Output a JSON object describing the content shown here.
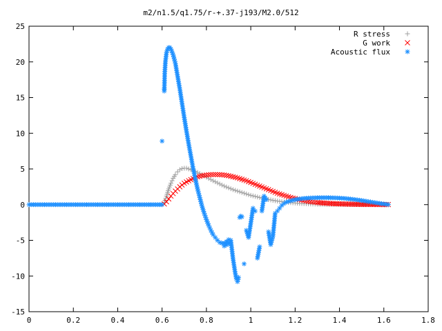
{
  "chart_data": {
    "type": "scatter",
    "title": "m2/n1.5/q1.75/r-+.37-j193/M2.0/512",
    "xlabel": "",
    "ylabel": "",
    "xlim": [
      0,
      1.8
    ],
    "ylim": [
      -15,
      25
    ],
    "x_ticks": [
      "0",
      "0.2",
      "0.4",
      "0.6",
      "0.8",
      "1",
      "1.2",
      "1.4",
      "1.6",
      "1.8"
    ],
    "y_ticks": [
      "-15",
      "-10",
      "-5",
      "0",
      "5",
      "10",
      "15",
      "20",
      "25"
    ],
    "grid": false,
    "legend_position": "top-right",
    "series": [
      {
        "name": "R stress",
        "marker": "plus",
        "color": "#a0a0a0",
        "points": [
          [
            0.6,
            0
          ],
          [
            0.61,
            0.3
          ],
          [
            0.62,
            1.2
          ],
          [
            0.63,
            2.2
          ],
          [
            0.64,
            3.0
          ],
          [
            0.65,
            3.7
          ],
          [
            0.66,
            4.2
          ],
          [
            0.67,
            4.6
          ],
          [
            0.68,
            4.9
          ],
          [
            0.69,
            5.05
          ],
          [
            0.7,
            5.1
          ],
          [
            0.71,
            5.1
          ],
          [
            0.72,
            5.0
          ],
          [
            0.74,
            4.8
          ],
          [
            0.76,
            4.5
          ],
          [
            0.78,
            4.2
          ],
          [
            0.8,
            3.85
          ],
          [
            0.82,
            3.5
          ],
          [
            0.84,
            3.2
          ],
          [
            0.86,
            2.9
          ],
          [
            0.88,
            2.6
          ],
          [
            0.9,
            2.35
          ],
          [
            0.92,
            2.1
          ],
          [
            0.94,
            1.9
          ],
          [
            0.96,
            1.7
          ],
          [
            0.98,
            1.5
          ],
          [
            1.0,
            1.3
          ],
          [
            1.02,
            1.15
          ],
          [
            1.04,
            1.0
          ],
          [
            1.06,
            0.85
          ],
          [
            1.08,
            0.72
          ],
          [
            1.1,
            0.6
          ],
          [
            1.12,
            0.5
          ],
          [
            1.14,
            0.42
          ],
          [
            1.16,
            0.35
          ],
          [
            1.18,
            0.28
          ],
          [
            1.2,
            0.23
          ],
          [
            1.22,
            0.18
          ],
          [
            1.24,
            0.14
          ],
          [
            1.26,
            0.11
          ],
          [
            1.28,
            0.09
          ],
          [
            1.3,
            0.07
          ],
          [
            1.34,
            0.05
          ],
          [
            1.38,
            0.04
          ],
          [
            1.42,
            0.03
          ],
          [
            1.46,
            0.02
          ],
          [
            1.5,
            0.01
          ],
          [
            1.54,
            0.01
          ],
          [
            1.58,
            0.0
          ],
          [
            1.62,
            0.0
          ]
        ]
      },
      {
        "name": "G work",
        "marker": "cross",
        "color": "#ff0000",
        "points": [
          [
            0.61,
            0.1
          ],
          [
            0.62,
            0.4
          ],
          [
            0.63,
            0.8
          ],
          [
            0.64,
            1.2
          ],
          [
            0.65,
            1.55
          ],
          [
            0.66,
            1.9
          ],
          [
            0.67,
            2.2
          ],
          [
            0.68,
            2.5
          ],
          [
            0.69,
            2.75
          ],
          [
            0.7,
            3.0
          ],
          [
            0.72,
            3.35
          ],
          [
            0.74,
            3.65
          ],
          [
            0.76,
            3.9
          ],
          [
            0.78,
            4.05
          ],
          [
            0.8,
            4.15
          ],
          [
            0.82,
            4.2
          ],
          [
            0.84,
            4.22
          ],
          [
            0.86,
            4.2
          ],
          [
            0.88,
            4.15
          ],
          [
            0.9,
            4.05
          ],
          [
            0.92,
            3.9
          ],
          [
            0.94,
            3.75
          ],
          [
            0.96,
            3.55
          ],
          [
            0.98,
            3.35
          ],
          [
            1.0,
            3.1
          ],
          [
            1.02,
            2.85
          ],
          [
            1.04,
            2.6
          ],
          [
            1.06,
            2.35
          ],
          [
            1.08,
            2.1
          ],
          [
            1.1,
            1.85
          ],
          [
            1.12,
            1.6
          ],
          [
            1.14,
            1.4
          ],
          [
            1.16,
            1.2
          ],
          [
            1.18,
            1.0
          ],
          [
            1.2,
            0.85
          ],
          [
            1.22,
            0.7
          ],
          [
            1.24,
            0.58
          ],
          [
            1.26,
            0.47
          ],
          [
            1.28,
            0.38
          ],
          [
            1.3,
            0.3
          ],
          [
            1.34,
            0.2
          ],
          [
            1.38,
            0.13
          ],
          [
            1.42,
            0.09
          ],
          [
            1.46,
            0.06
          ],
          [
            1.5,
            0.04
          ],
          [
            1.54,
            0.03
          ],
          [
            1.58,
            0.02
          ],
          [
            1.62,
            0.01
          ]
        ]
      },
      {
        "name": "Acoustic flux",
        "marker": "star",
        "color": "#1e90ff",
        "points": [
          [
            0.0,
            0
          ],
          [
            0.03,
            0
          ],
          [
            0.06,
            0
          ],
          [
            0.09,
            0
          ],
          [
            0.12,
            0
          ],
          [
            0.15,
            0
          ],
          [
            0.18,
            0
          ],
          [
            0.21,
            0
          ],
          [
            0.24,
            0
          ],
          [
            0.27,
            0
          ],
          [
            0.3,
            0
          ],
          [
            0.33,
            0
          ],
          [
            0.36,
            0
          ],
          [
            0.39,
            0
          ],
          [
            0.42,
            0
          ],
          [
            0.45,
            0
          ],
          [
            0.48,
            0
          ],
          [
            0.51,
            0
          ],
          [
            0.54,
            0
          ],
          [
            0.57,
            0
          ],
          [
            0.6,
            0
          ],
          [
            0.6,
            8.9
          ],
          [
            0.61,
            16.2
          ],
          [
            0.61,
            15.9
          ],
          [
            0.612,
            18.4
          ],
          [
            0.615,
            20.0
          ],
          [
            0.62,
            21.3
          ],
          [
            0.625,
            21.8
          ],
          [
            0.63,
            22.0
          ],
          [
            0.635,
            22.0
          ],
          [
            0.64,
            21.8
          ],
          [
            0.65,
            21.0
          ],
          [
            0.66,
            19.8
          ],
          [
            0.67,
            18.0
          ],
          [
            0.68,
            16.2
          ],
          [
            0.69,
            14.2
          ],
          [
            0.7,
            12.2
          ],
          [
            0.71,
            10.3
          ],
          [
            0.72,
            8.5
          ],
          [
            0.73,
            6.8
          ],
          [
            0.74,
            5.1
          ],
          [
            0.75,
            3.6
          ],
          [
            0.76,
            2.2
          ],
          [
            0.77,
            1.0
          ],
          [
            0.78,
            -0.2
          ],
          [
            0.79,
            -1.2
          ],
          [
            0.8,
            -2.1
          ],
          [
            0.81,
            -2.9
          ],
          [
            0.82,
            -3.6
          ],
          [
            0.83,
            -4.2
          ],
          [
            0.84,
            -4.6
          ],
          [
            0.85,
            -5.0
          ],
          [
            0.86,
            -5.3
          ],
          [
            0.87,
            -5.4
          ],
          [
            0.88,
            -5.4
          ],
          [
            0.89,
            -5.2
          ],
          [
            0.9,
            -4.9
          ],
          [
            0.88,
            -5.8
          ],
          [
            0.9,
            -5.5
          ],
          [
            0.91,
            -5.0
          ],
          [
            0.92,
            -7.6
          ],
          [
            0.93,
            -9.6
          ],
          [
            0.935,
            -10.4
          ],
          [
            0.94,
            -10.8
          ],
          [
            0.945,
            -10.2
          ],
          [
            0.95,
            -1.8
          ],
          [
            0.955,
            -1.6
          ],
          [
            0.96,
            -1.7
          ],
          [
            0.97,
            -8.3
          ],
          [
            0.98,
            -3.6
          ],
          [
            0.99,
            -4.6
          ],
          [
            1.0,
            -2.6
          ],
          [
            1.01,
            -0.5
          ],
          [
            1.02,
            -0.9
          ],
          [
            1.03,
            -7.5
          ],
          [
            1.04,
            -5.9
          ],
          [
            1.05,
            -0.9
          ],
          [
            1.06,
            1.2
          ],
          [
            1.07,
            0.7
          ],
          [
            1.08,
            -3.8
          ],
          [
            1.09,
            -5.6
          ],
          [
            1.1,
            -4.4
          ],
          [
            1.11,
            -1.2
          ],
          [
            1.12,
            -0.9
          ],
          [
            1.13,
            -0.5
          ],
          [
            1.14,
            -0.1
          ],
          [
            1.15,
            0.15
          ],
          [
            1.16,
            0.35
          ],
          [
            1.18,
            0.55
          ],
          [
            1.2,
            0.7
          ],
          [
            1.22,
            0.8
          ],
          [
            1.24,
            0.88
          ],
          [
            1.26,
            0.92
          ],
          [
            1.28,
            0.95
          ],
          [
            1.3,
            0.97
          ],
          [
            1.32,
            0.98
          ],
          [
            1.34,
            0.98
          ],
          [
            1.36,
            0.97
          ],
          [
            1.38,
            0.95
          ],
          [
            1.4,
            0.92
          ],
          [
            1.42,
            0.88
          ],
          [
            1.44,
            0.82
          ],
          [
            1.46,
            0.75
          ],
          [
            1.48,
            0.67
          ],
          [
            1.5,
            0.58
          ],
          [
            1.52,
            0.48
          ],
          [
            1.54,
            0.38
          ],
          [
            1.56,
            0.28
          ],
          [
            1.58,
            0.18
          ],
          [
            1.6,
            0.09
          ],
          [
            1.62,
            0.02
          ]
        ]
      }
    ]
  }
}
